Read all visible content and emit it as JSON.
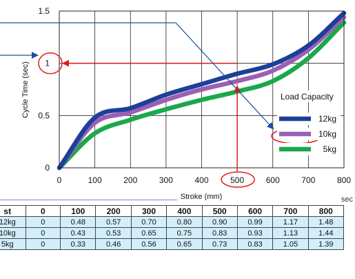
{
  "chart_data": {
    "type": "line",
    "title": "",
    "xlabel": "Stroke (mm)",
    "ylabel": "Cycle Time (sec)",
    "x": [
      0,
      100,
      200,
      300,
      400,
      500,
      600,
      700,
      800
    ],
    "xlim": [
      0,
      800
    ],
    "ylim": [
      0,
      1.5
    ],
    "xticks": [
      "0",
      "100",
      "200",
      "300",
      "400",
      "500",
      "600",
      "700",
      "800"
    ],
    "yticks": [
      "0",
      "0.5",
      "1",
      "1.5"
    ],
    "grid": true,
    "legend_title": "Load Capacity",
    "legend_position": "lower-right",
    "series": [
      {
        "name": "12kg",
        "color": "#1c3f9a",
        "values": [
          0,
          0.48,
          0.57,
          0.7,
          0.8,
          0.9,
          0.99,
          1.17,
          1.48
        ]
      },
      {
        "name": "10kg",
        "color": "#9b5fb5",
        "values": [
          0,
          0.43,
          0.53,
          0.65,
          0.75,
          0.83,
          0.93,
          1.13,
          1.44
        ]
      },
      {
        "name": "5kg",
        "color": "#1aa84a",
        "values": [
          0,
          0.33,
          0.46,
          0.56,
          0.65,
          0.73,
          0.83,
          1.05,
          1.39
        ]
      }
    ],
    "annotations": {
      "highlight_stroke": 500,
      "highlight_cycle_time": 1,
      "highlight_series": "10kg",
      "highlight_color": "#e01b1b",
      "pointer_color": "#1d4e9c"
    }
  },
  "table": {
    "unit": "sec",
    "header": [
      "st",
      "0",
      "100",
      "200",
      "300",
      "400",
      "500",
      "600",
      "700",
      "800"
    ],
    "rows": [
      [
        "12kg",
        "0",
        "0.48",
        "0.57",
        "0.70",
        "0.80",
        "0.90",
        "0.99",
        "1.17",
        "1.48"
      ],
      [
        "10kg",
        "0",
        "0.43",
        "0.53",
        "0.65",
        "0.75",
        "0.83",
        "0.93",
        "1.13",
        "1.44"
      ],
      [
        "5kg",
        "0",
        "0.33",
        "0.46",
        "0.56",
        "0.65",
        "0.73",
        "0.83",
        "1.05",
        "1.39"
      ]
    ]
  }
}
